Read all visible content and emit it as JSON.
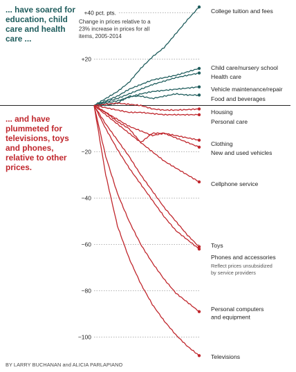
{
  "headline_up": "... have soared for education, child care and health care ...",
  "headline_down": "... and have plummeted for televisions, toys and phones, relative to other prices.",
  "byline": "BY LARRY BUCHANAN and ALICIA PARLAPIANO",
  "colors": {
    "up": "#1e5c5c",
    "down": "#c0262c",
    "grid": "#999999",
    "zero": "#222222"
  },
  "chart_data": {
    "type": "line",
    "title": "",
    "xlabel": "",
    "ylabel": "",
    "note_lines": [
      "Change in prices relative to a",
      "23% increase in prices for all",
      "items, 2005-2014"
    ],
    "x_range": [
      2005,
      2014
    ],
    "ylim": [
      -105,
      42
    ],
    "yticks": [
      {
        "value": 40,
        "label": "+40 pct. pts."
      },
      {
        "value": 20,
        "label": "+20"
      },
      {
        "value": -20,
        "label": "−20"
      },
      {
        "value": -40,
        "label": "−40"
      },
      {
        "value": -60,
        "label": "−60"
      },
      {
        "value": -80,
        "label": "−80"
      },
      {
        "value": -100,
        "label": "−100"
      }
    ],
    "grid": true,
    "legend": "direct labels at line ends",
    "series": [
      {
        "name": "College tuition and fees",
        "group": "up",
        "end": 42.5,
        "points": [
          [
            2005,
            0
          ],
          [
            2006,
            3
          ],
          [
            2007,
            6
          ],
          [
            2008,
            10
          ],
          [
            2009,
            16
          ],
          [
            2010,
            21
          ],
          [
            2011,
            25
          ],
          [
            2012,
            31
          ],
          [
            2013,
            37
          ],
          [
            2014,
            42.5
          ]
        ]
      },
      {
        "name": "Child care/nursery school",
        "group": "up",
        "end": 16,
        "points": [
          [
            2005,
            0
          ],
          [
            2006,
            2
          ],
          [
            2007,
            4
          ],
          [
            2008,
            7
          ],
          [
            2009,
            9
          ],
          [
            2010,
            11
          ],
          [
            2011,
            12
          ],
          [
            2012,
            13
          ],
          [
            2013,
            14.5
          ],
          [
            2014,
            16
          ]
        ]
      },
      {
        "name": "Health care",
        "group": "up",
        "end": 14,
        "points": [
          [
            2005,
            0
          ],
          [
            2006,
            1.5
          ],
          [
            2007,
            3
          ],
          [
            2008,
            5
          ],
          [
            2009,
            7
          ],
          [
            2010,
            9
          ],
          [
            2011,
            10.5
          ],
          [
            2012,
            12
          ],
          [
            2013,
            13
          ],
          [
            2014,
            14
          ]
        ]
      },
      {
        "name": "Vehicle maintenance/repair",
        "group": "up",
        "end": 8,
        "points": [
          [
            2005,
            0
          ],
          [
            2006,
            1
          ],
          [
            2007,
            2
          ],
          [
            2008,
            3.5
          ],
          [
            2009,
            5
          ],
          [
            2010,
            6
          ],
          [
            2011,
            6.5
          ],
          [
            2012,
            7
          ],
          [
            2013,
            7.5
          ],
          [
            2014,
            8
          ]
        ]
      },
      {
        "name": "Food and beverages",
        "group": "up",
        "end": 4.5,
        "points": [
          [
            2005,
            0
          ],
          [
            2006,
            0
          ],
          [
            2007,
            1
          ],
          [
            2008,
            4
          ],
          [
            2009,
            4
          ],
          [
            2010,
            3
          ],
          [
            2011,
            4
          ],
          [
            2012,
            5
          ],
          [
            2013,
            4.5
          ],
          [
            2014,
            4.5
          ]
        ]
      },
      {
        "name": "Housing",
        "group": "down",
        "end": -1.5,
        "points": [
          [
            2005,
            0
          ],
          [
            2006,
            0.5
          ],
          [
            2007,
            1
          ],
          [
            2008,
            0.5
          ],
          [
            2009,
            0
          ],
          [
            2010,
            -1.5
          ],
          [
            2011,
            -2
          ],
          [
            2012,
            -2
          ],
          [
            2013,
            -1.8
          ],
          [
            2014,
            -1.5
          ]
        ]
      },
      {
        "name": "Personal care",
        "group": "down",
        "end": -4,
        "points": [
          [
            2005,
            0
          ],
          [
            2006,
            -1
          ],
          [
            2007,
            -2
          ],
          [
            2008,
            -3
          ],
          [
            2009,
            -3
          ],
          [
            2010,
            -3.5
          ],
          [
            2011,
            -4
          ],
          [
            2012,
            -4
          ],
          [
            2013,
            -4
          ],
          [
            2014,
            -4
          ]
        ]
      },
      {
        "name": "Clothing",
        "group": "down",
        "end": -15,
        "points": [
          [
            2005,
            0
          ],
          [
            2006,
            -3
          ],
          [
            2007,
            -6
          ],
          [
            2008,
            -9
          ],
          [
            2009,
            -11
          ],
          [
            2010,
            -13
          ],
          [
            2011,
            -12
          ],
          [
            2012,
            -13
          ],
          [
            2013,
            -14
          ],
          [
            2014,
            -15
          ]
        ]
      },
      {
        "name": "New and used vehicles",
        "group": "down",
        "end": -18,
        "points": [
          [
            2005,
            0
          ],
          [
            2006,
            -3
          ],
          [
            2007,
            -7
          ],
          [
            2008,
            -10
          ],
          [
            2009,
            -16
          ],
          [
            2010,
            -12
          ],
          [
            2011,
            -12
          ],
          [
            2012,
            -14
          ],
          [
            2013,
            -16
          ],
          [
            2014,
            -18
          ]
        ]
      },
      {
        "name": "Cellphone service",
        "group": "down",
        "end": -33,
        "points": [
          [
            2005,
            0
          ],
          [
            2006,
            -4
          ],
          [
            2007,
            -8
          ],
          [
            2008,
            -12
          ],
          [
            2009,
            -16
          ],
          [
            2010,
            -20
          ],
          [
            2011,
            -24
          ],
          [
            2012,
            -27
          ],
          [
            2013,
            -30
          ],
          [
            2014,
            -33
          ]
        ]
      },
      {
        "name": "Toys",
        "group": "down",
        "end": -61,
        "points": [
          [
            2005,
            0
          ],
          [
            2006,
            -8
          ],
          [
            2007,
            -15
          ],
          [
            2008,
            -22
          ],
          [
            2009,
            -30
          ],
          [
            2010,
            -37
          ],
          [
            2011,
            -44
          ],
          [
            2012,
            -50
          ],
          [
            2013,
            -56
          ],
          [
            2014,
            -61
          ]
        ]
      },
      {
        "name": "Phones and accessories",
        "group": "down",
        "end": -62,
        "note": "Reflect prices unsubsidized by service providers",
        "points": [
          [
            2005,
            0
          ],
          [
            2006,
            -10
          ],
          [
            2007,
            -19
          ],
          [
            2008,
            -27
          ],
          [
            2009,
            -34
          ],
          [
            2010,
            -41
          ],
          [
            2011,
            -48
          ],
          [
            2012,
            -54
          ],
          [
            2013,
            -58
          ],
          [
            2014,
            -62
          ]
        ]
      },
      {
        "name": "Personal computers and equipment",
        "group": "down",
        "end": -89,
        "points": [
          [
            2005,
            0
          ],
          [
            2006,
            -22
          ],
          [
            2007,
            -38
          ],
          [
            2008,
            -50
          ],
          [
            2009,
            -60
          ],
          [
            2010,
            -68
          ],
          [
            2011,
            -75
          ],
          [
            2012,
            -81
          ],
          [
            2013,
            -85
          ],
          [
            2014,
            -89
          ]
        ]
      },
      {
        "name": "Televisions",
        "group": "down",
        "end": -108,
        "points": [
          [
            2005,
            0
          ],
          [
            2006,
            -30
          ],
          [
            2007,
            -52
          ],
          [
            2008,
            -66
          ],
          [
            2009,
            -77
          ],
          [
            2010,
            -86
          ],
          [
            2011,
            -93
          ],
          [
            2012,
            -99
          ],
          [
            2013,
            -104
          ],
          [
            2014,
            -108
          ]
        ]
      }
    ]
  },
  "labels": [
    {
      "series": "College tuition and fees",
      "lines": [
        "College tuition and fees"
      ]
    },
    {
      "series": "Child care/nursery school",
      "lines": [
        "Child care/nursery school"
      ]
    },
    {
      "series": "Health care",
      "lines": [
        "Health care"
      ]
    },
    {
      "series": "Vehicle maintenance/repair",
      "lines": [
        "Vehicle maintenance/repair"
      ]
    },
    {
      "series": "Food and beverages",
      "lines": [
        "Food and beverages"
      ]
    },
    {
      "series": "Housing",
      "lines": [
        "Housing"
      ]
    },
    {
      "series": "Personal care",
      "lines": [
        "Personal care"
      ]
    },
    {
      "series": "Clothing",
      "lines": [
        "Clothing"
      ]
    },
    {
      "series": "New and used vehicles",
      "lines": [
        "New and used vehicles"
      ]
    },
    {
      "series": "Cellphone service",
      "lines": [
        "Cellphone service"
      ]
    },
    {
      "series": "Toys",
      "lines": [
        "Toys"
      ]
    },
    {
      "series": "Phones and accessories",
      "lines": [
        "Phones and accessories"
      ],
      "sublines": [
        "Reflect prices unsubsidized",
        "by service providers"
      ]
    },
    {
      "series": "Personal computers and equipment",
      "lines": [
        "Personal computers",
        "and equipment"
      ]
    },
    {
      "series": "Televisions",
      "lines": [
        "Televisions"
      ]
    }
  ]
}
